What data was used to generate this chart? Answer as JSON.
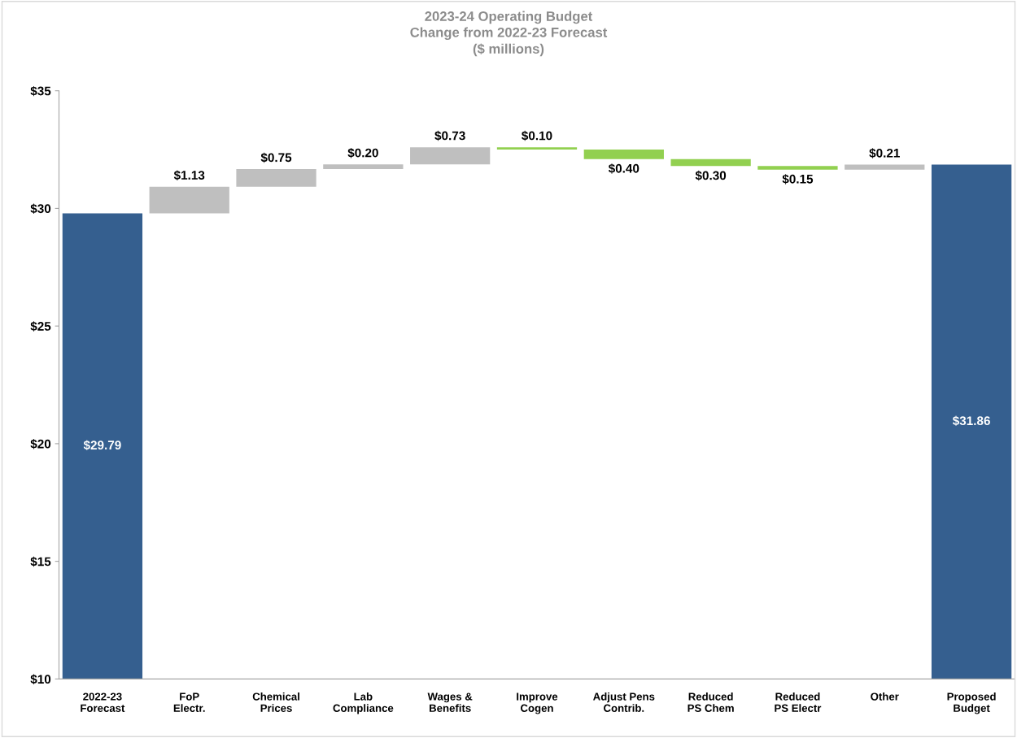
{
  "chart_data": {
    "type": "bar",
    "title": "2023-24 Operating Budget\nChange from 2022-23 Forecast\n($ millions)",
    "categories": [
      "2022-23\nForecast",
      "FoP\nElectr.",
      "Chemical\nPrices",
      "Lab\nCompliance",
      "Wages &\nBenefits",
      "Improve\nCogen",
      "Adjust Pens\nContrib.",
      "Reduced\nPS Chem",
      "Reduced\nPS Electr",
      "Other",
      "Proposed\nBudget"
    ],
    "values": [
      29.79,
      1.13,
      0.75,
      0.2,
      0.73,
      0.1,
      0.4,
      0.3,
      0.15,
      0.21,
      31.86
    ],
    "base": [
      null,
      29.79,
      30.92,
      31.67,
      31.87,
      32.5,
      32.1,
      31.8,
      31.65,
      31.65,
      null
    ],
    "colors": [
      "#355f8f",
      "#bfbfbf",
      "#bfbfbf",
      "#bfbfbf",
      "#bfbfbf",
      "#92d050",
      "#92d050",
      "#92d050",
      "#92d050",
      "#bfbfbf",
      "#355f8f"
    ],
    "value_labels": [
      "$29.79",
      "$1.13",
      "$0.75",
      "$0.20",
      "$0.73",
      "$0.10",
      "$0.40",
      "$0.30",
      "$0.15",
      "$0.21",
      "$31.86"
    ],
    "ylim": [
      10,
      35
    ],
    "yticks": [
      {
        "value": 10,
        "label": "$10"
      },
      {
        "value": 15,
        "label": "$15"
      },
      {
        "value": 20,
        "label": "$20"
      },
      {
        "value": 25,
        "label": "$25"
      },
      {
        "value": 30,
        "label": "$30"
      },
      {
        "value": 35,
        "label": "$35"
      }
    ],
    "grid": false,
    "legend": false
  }
}
